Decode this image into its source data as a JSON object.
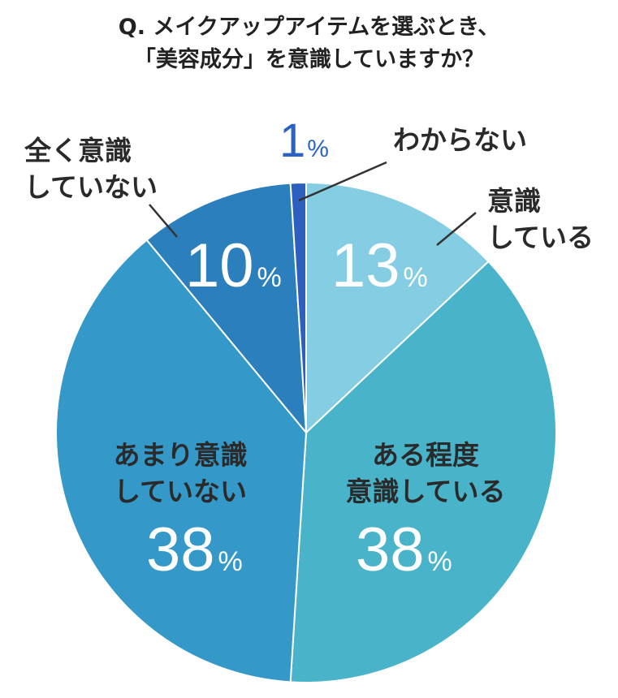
{
  "chart_data": {
    "type": "pie",
    "title_lines": [
      "Q. メイクアップアイテムを選ぶとき、",
      "「美容成分」を意識していますか？"
    ],
    "unit": "%",
    "slices": [
      {
        "key": "aware",
        "label_lines": [
          "意識",
          "している"
        ],
        "value": 13,
        "color": "#85cde3"
      },
      {
        "key": "somewhat",
        "label_lines": [
          "ある程度",
          "意識している"
        ],
        "value": 38,
        "color": "#49b4c9"
      },
      {
        "key": "not_much",
        "label_lines": [
          "あまり意識",
          "していない"
        ],
        "value": 38,
        "color": "#3499c9"
      },
      {
        "key": "not_at_all",
        "label_lines": [
          "全く意識",
          "していない"
        ],
        "value": 10,
        "color": "#2a7fbc"
      },
      {
        "key": "unknown",
        "label_lines": [
          "わからない"
        ],
        "value": 1,
        "color": "#2d5fbf"
      }
    ]
  }
}
